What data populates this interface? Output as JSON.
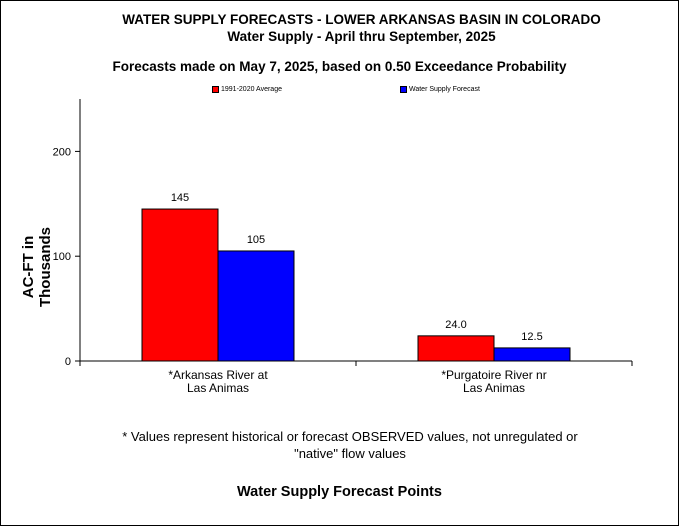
{
  "chart_data": {
    "type": "bar",
    "title": "WATER SUPPLY FORECASTS - LOWER ARKANSAS  BASIN IN COLORADO",
    "subtitle": "Water Supply - April thru September, 2025",
    "subtitle2": "Forecasts made on May 7, 2025, based on 0.50 Exceedance Probability",
    "xlabel": "Water Supply Forecast Points",
    "ylabel": "AC-FT in Thousands",
    "ylim": [
      0,
      250
    ],
    "yticks": [
      0,
      100,
      200
    ],
    "grid": false,
    "legend_position": "top",
    "categories": [
      [
        "*Arkansas River at",
        "Las Animas"
      ],
      [
        "*Purgatoire River nr",
        "Las Animas"
      ]
    ],
    "series": [
      {
        "name": "1991-2020 Average",
        "color": "#ff0000",
        "values": [
          145,
          24.0
        ],
        "labels": [
          "145",
          "24.0"
        ]
      },
      {
        "name": "Water Supply Forecast",
        "color": "#0000ff",
        "values": [
          105,
          12.5
        ],
        "labels": [
          "105",
          "12.5"
        ]
      }
    ],
    "footnote": [
      "*  Values represent historical or forecast OBSERVED values, not unregulated or",
      "\"native\" flow values"
    ]
  }
}
